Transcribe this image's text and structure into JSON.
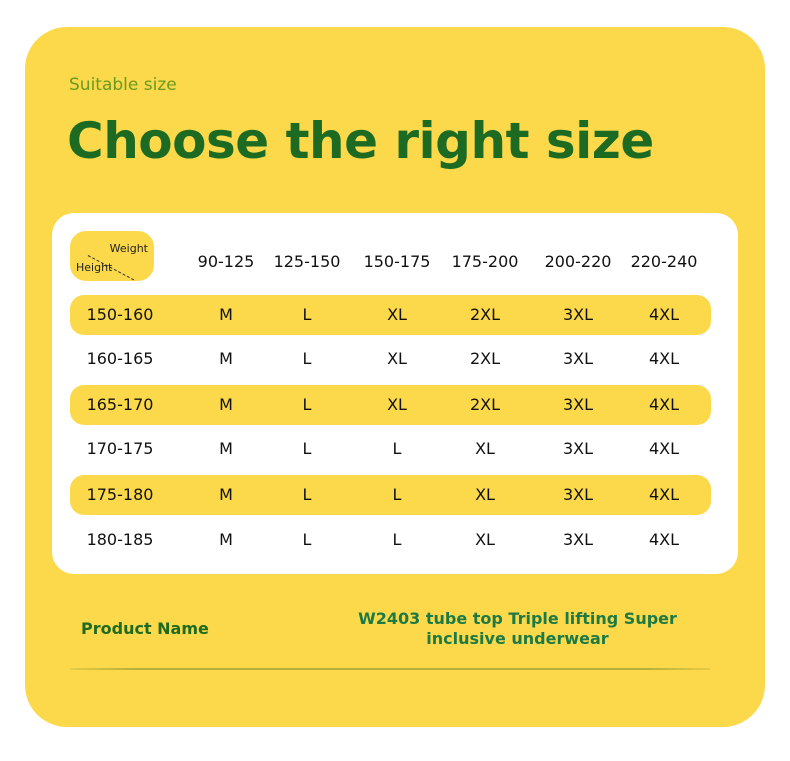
{
  "subtitle": "Suitable size",
  "title": "Choose the right size",
  "table": {
    "corner": {
      "col_label": "Weight",
      "row_label": "Height"
    },
    "columns": [
      "90-125",
      "125-150",
      "150-175",
      "175-200",
      "200-220",
      "220-240"
    ],
    "rows": [
      {
        "height": "150-160",
        "sizes": [
          "M",
          "L",
          "XL",
          "2XL",
          "3XL",
          "4XL"
        ]
      },
      {
        "height": "160-165",
        "sizes": [
          "M",
          "L",
          "XL",
          "2XL",
          "3XL",
          "4XL"
        ]
      },
      {
        "height": "165-170",
        "sizes": [
          "M",
          "L",
          "XL",
          "2XL",
          "3XL",
          "4XL"
        ]
      },
      {
        "height": "170-175",
        "sizes": [
          "M",
          "L",
          "L",
          "XL",
          "3XL",
          "4XL"
        ]
      },
      {
        "height": "175-180",
        "sizes": [
          "M",
          "L",
          "L",
          "XL",
          "3XL",
          "4XL"
        ]
      },
      {
        "height": "180-185",
        "sizes": [
          "M",
          "L",
          "L",
          "XL",
          "3XL",
          "4XL"
        ]
      }
    ]
  },
  "product": {
    "label": "Product Name",
    "value": "W2403 tube top Triple lifting Super inclusive underwear"
  },
  "colors": {
    "background": "#fcd94a",
    "title": "#1d6a22",
    "highlight_row": "#fcd94a"
  }
}
